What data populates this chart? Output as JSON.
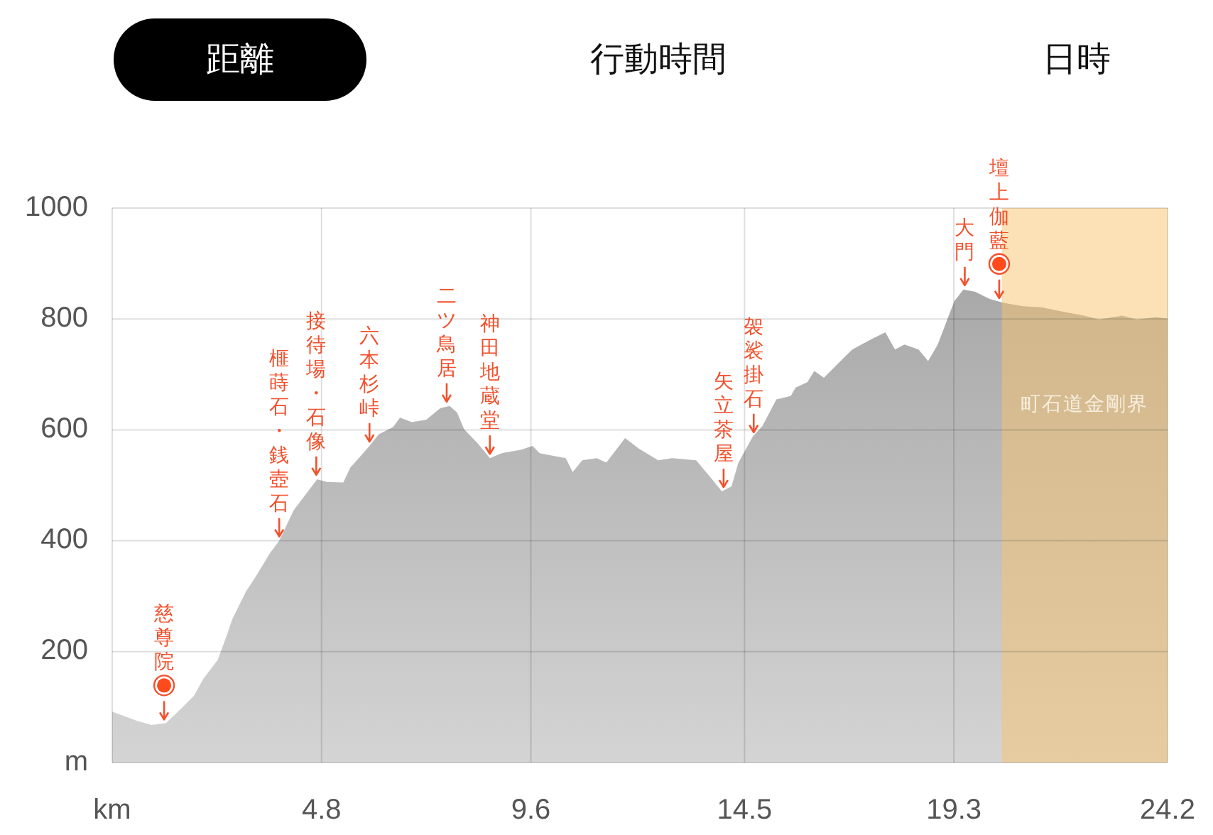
{
  "chart_data": {
    "type": "area",
    "x": [
      0,
      0.58,
      0.9,
      1.23,
      1.55,
      1.88,
      2.09,
      2.42,
      2.64,
      2.75,
      3.07,
      3.29,
      3.62,
      3.83,
      4.16,
      4.49,
      4.7,
      4.92,
      5.3,
      5.46,
      5.9,
      6.11,
      6.44,
      6.6,
      6.87,
      7.2,
      7.52,
      7.74,
      7.91,
      8.07,
      8.39,
      8.66,
      8.93,
      9.37,
      9.64,
      9.8,
      10.4,
      10.56,
      10.78,
      11.11,
      11.33,
      11.76,
      12.08,
      12.52,
      12.84,
      13.39,
      13.71,
      13.98,
      14.2,
      14.36,
      14.69,
      14.91,
      15.23,
      15.56,
      15.67,
      15.94,
      16.1,
      16.32,
      16.65,
      16.97,
      17.4,
      17.73,
      17.95,
      18.17,
      18.49,
      18.71,
      18.93,
      19.14,
      19.31,
      19.52,
      19.79,
      20.12,
      20.44,
      20.88,
      21.31,
      21.74,
      22.29,
      22.62,
      23.16,
      23.49,
      23.92,
      24.2
    ],
    "series": [
      {
        "color": "#a9a9a9",
        "values": [
          92,
          75,
          68,
          71,
          95,
          121,
          151,
          185,
          232,
          258,
          309,
          335,
          378,
          400,
          455,
          489,
          511,
          506,
          505,
          532,
          571,
          592,
          605,
          622,
          614,
          618,
          639,
          643,
          631,
          601,
          575,
          549,
          558,
          564,
          571,
          558,
          549,
          524,
          545,
          549,
          541,
          585,
          566,
          545,
          549,
          545,
          515,
          489,
          498,
          541,
          588,
          607,
          655,
          661,
          676,
          686,
          706,
          694,
          720,
          745,
          763,
          776,
          745,
          754,
          745,
          724,
          754,
          797,
          832,
          853,
          849,
          836,
          829,
          823,
          821,
          814,
          806,
          799,
          806,
          799,
          803,
          801
        ]
      }
    ],
    "xlim": [
      0,
      24.2
    ],
    "ylim": [
      0,
      1000
    ],
    "xticks": [
      {
        "value": 0,
        "label": "km"
      },
      4.8,
      9.6,
      14.5,
      19.3,
      24.2
    ],
    "yticks": [
      {
        "value": 0,
        "label": "m"
      },
      200,
      400,
      600,
      800,
      1000
    ],
    "grid": true,
    "bands": [
      {
        "axis": "x",
        "from": 20.4,
        "to": 24.2,
        "label": "町石道金剛界",
        "color": "#f7c46c"
      }
    ],
    "annotations": [
      "距離",
      "行動時間",
      "日時",
      {
        "text": "慈尊院",
        "x": 1.19,
        "y": 70
      },
      {
        "text": "榧蒔石・銭壺石",
        "x": 3.83,
        "y": 400
      },
      {
        "text": "接待場・石像",
        "x": 4.68,
        "y": 511
      },
      {
        "text": "六本杉峠",
        "x": 5.9,
        "y": 571
      },
      {
        "text": "二ツ鳥居",
        "x": 7.67,
        "y": 643
      },
      {
        "text": "神田地蔵堂",
        "x": 8.66,
        "y": 549
      },
      {
        "text": "矢立茶屋",
        "x": 14.02,
        "y": 489
      },
      {
        "text": "袈裟掛石",
        "x": 14.71,
        "y": 588
      },
      {
        "text": "大門",
        "x": 19.55,
        "y": 853
      },
      {
        "text": "壇上伽藍",
        "x": 20.34,
        "y": 830
      }
    ]
  }
}
